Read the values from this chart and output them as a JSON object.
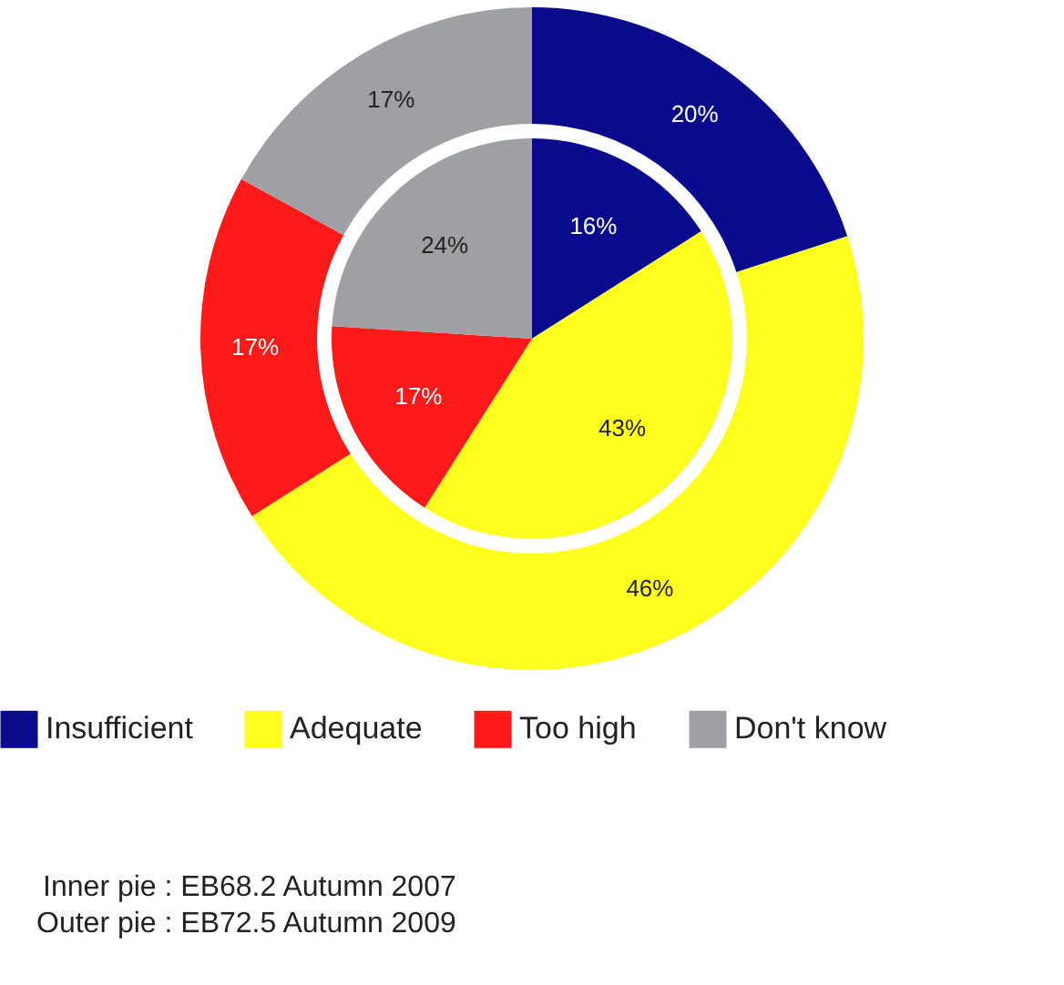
{
  "chart_data": {
    "type": "pie",
    "categories": [
      "Insufficient",
      "Adequate",
      "Too high",
      "Don't know"
    ],
    "colors": [
      "#0a0a8c",
      "#ffff1e",
      "#ff1a1a",
      "#9fa0a4"
    ],
    "series": [
      {
        "values": [
          20,
          46,
          17,
          17
        ],
        "value_labels": [
          "20%",
          "46%",
          "17%",
          "17%"
        ]
      },
      {
        "values": [
          16,
          43,
          17,
          24
        ],
        "value_labels": [
          "16%",
          "43%",
          "17%",
          "24%"
        ]
      }
    ],
    "legend": "bottom",
    "annotations": [
      "Inner pie : EB68.2 Autumn 2007",
      "Outer pie : EB72.5 Autumn 2009"
    ]
  }
}
